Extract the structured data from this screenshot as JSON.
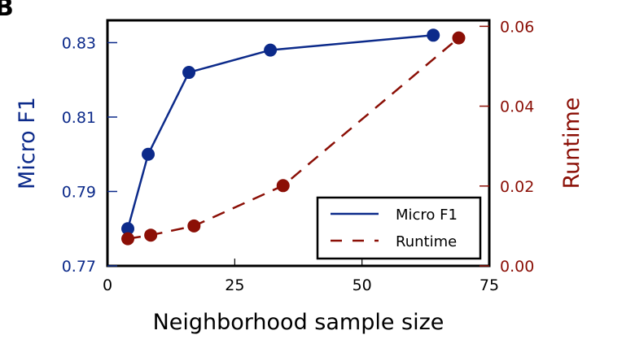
{
  "panel_label": "B",
  "colors": {
    "micro_f1": "#0c2a8a",
    "runtime": "#8b0f06",
    "axis": "#000000",
    "legend_border": "#000000"
  },
  "legend": {
    "items": [
      {
        "label": "Micro F1",
        "style": "solid"
      },
      {
        "label": "Runtime",
        "style": "dashed"
      }
    ]
  },
  "chart_data": {
    "type": "line",
    "title": "",
    "xlabel": "Neighborhood sample size",
    "ylabel": "Micro F1",
    "ylabel_right": "Runtime",
    "xlim": [
      0,
      75
    ],
    "ylim": [
      0.77,
      0.836
    ],
    "ylim_right": [
      0.0,
      0.0615
    ],
    "x_ticks": [
      0,
      25,
      50,
      75
    ],
    "x_tick_labels": [
      "0",
      "25",
      "50",
      "75"
    ],
    "y_ticks": [
      0.77,
      0.79,
      0.81,
      0.83
    ],
    "y_tick_labels": [
      "0.77",
      "0.79",
      "0.81",
      "0.83"
    ],
    "y_right_ticks": [
      0.0,
      0.02,
      0.04,
      0.06
    ],
    "y_right_tick_labels": [
      "0.00",
      "0.02",
      "0.04",
      "0.06"
    ],
    "grid": false,
    "legend_position": "lower right",
    "series": [
      {
        "name": "Micro F1",
        "axis": "left",
        "style": "solid",
        "x": [
          4,
          8,
          16,
          32,
          64
        ],
        "values": [
          0.78,
          0.8,
          0.822,
          0.828,
          0.832
        ]
      },
      {
        "name": "Runtime",
        "axis": "right",
        "style": "dashed",
        "x": [
          4,
          8.5,
          17,
          34.5,
          69
        ],
        "values": [
          0.0068,
          0.0077,
          0.01,
          0.0201,
          0.0571
        ]
      }
    ]
  }
}
